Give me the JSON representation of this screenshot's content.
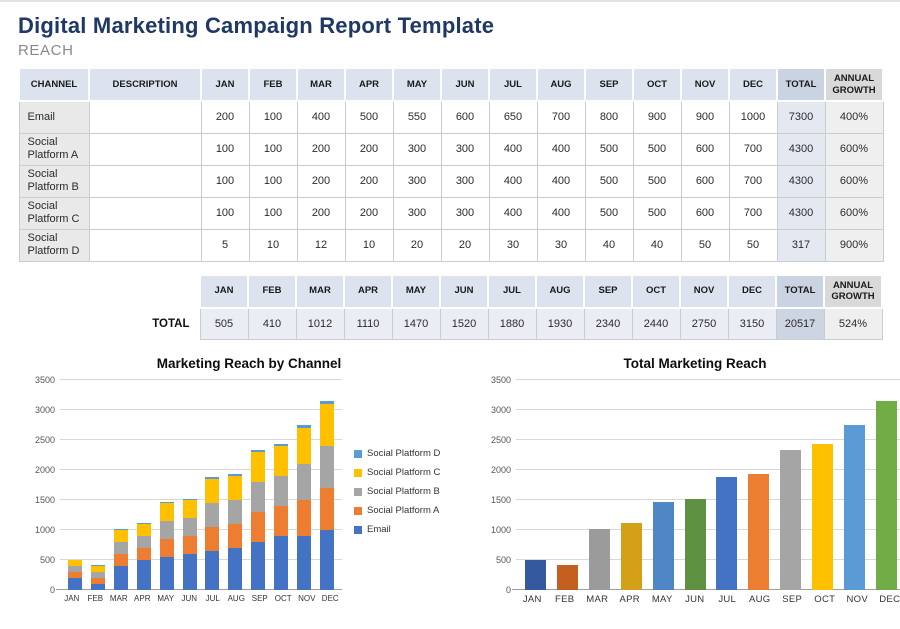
{
  "page": {
    "title": "Digital Marketing Campaign Report Template",
    "section": "REACH"
  },
  "colors": {
    "titleNavy": "#1F3864",
    "sectionGray": "#8A8A8A",
    "headerBlue": "#DCE3EE",
    "headerTotal": "#C9D3E1",
    "headerGrowth": "#D9D9D9",
    "cellChannel": "#E9E9E9",
    "cellTotal": "#E3E8F1",
    "cellGrowth": "#EFEFEF",
    "cellBottomData": "#EAEDF3",
    "cellBottomTotal": "#CDD5E3",
    "borderGray": "#C9CCD1"
  },
  "reach_table": {
    "headers": [
      "CHANNEL",
      "DESCRIPTION",
      "JAN",
      "FEB",
      "MAR",
      "APR",
      "MAY",
      "JUN",
      "JUL",
      "AUG",
      "SEP",
      "OCT",
      "NOV",
      "DEC",
      "TOTAL",
      "ANNUAL GROWTH"
    ],
    "rows": [
      {
        "channel": "Email",
        "description": "",
        "values": [
          200,
          100,
          400,
          500,
          550,
          600,
          650,
          700,
          800,
          900,
          900,
          1000
        ],
        "total": 7300,
        "growth": "400%"
      },
      {
        "channel": "Social Platform A",
        "description": "",
        "values": [
          100,
          100,
          200,
          200,
          300,
          300,
          400,
          400,
          500,
          500,
          600,
          700
        ],
        "total": 4300,
        "growth": "600%"
      },
      {
        "channel": "Social Platform B",
        "description": "",
        "values": [
          100,
          100,
          200,
          200,
          300,
          300,
          400,
          400,
          500,
          500,
          600,
          700
        ],
        "total": 4300,
        "growth": "600%"
      },
      {
        "channel": "Social Platform C",
        "description": "",
        "values": [
          100,
          100,
          200,
          200,
          300,
          300,
          400,
          400,
          500,
          500,
          600,
          700
        ],
        "total": 4300,
        "growth": "600%"
      },
      {
        "channel": "Social Platform D",
        "description": "",
        "values": [
          5,
          10,
          12,
          10,
          20,
          20,
          30,
          30,
          40,
          40,
          50,
          50
        ],
        "total": 317,
        "growth": "900%"
      }
    ]
  },
  "total_table": {
    "label": "TOTAL",
    "headers": [
      "JAN",
      "FEB",
      "MAR",
      "APR",
      "MAY",
      "JUN",
      "JUL",
      "AUG",
      "SEP",
      "OCT",
      "NOV",
      "DEC",
      "TOTAL",
      "ANNUAL GROWTH"
    ],
    "values": [
      505,
      410,
      1012,
      1110,
      1470,
      1520,
      1880,
      1930,
      2340,
      2440,
      2750,
      3150
    ],
    "total": 20517,
    "growth": "524%"
  },
  "chart_data": [
    {
      "type": "bar",
      "stacked": true,
      "title": "Marketing Reach by Channel",
      "categories": [
        "JAN",
        "FEB",
        "MAR",
        "APR",
        "MAY",
        "JUN",
        "JUL",
        "AUG",
        "SEP",
        "OCT",
        "NOV",
        "DEC"
      ],
      "series": [
        {
          "name": "Email",
          "color": "#4472C4",
          "values": [
            200,
            100,
            400,
            500,
            550,
            600,
            650,
            700,
            800,
            900,
            900,
            1000
          ]
        },
        {
          "name": "Social Platform A",
          "color": "#ED7D31",
          "values": [
            100,
            100,
            200,
            200,
            300,
            300,
            400,
            400,
            500,
            500,
            600,
            700
          ]
        },
        {
          "name": "Social Platform B",
          "color": "#A5A5A5",
          "values": [
            100,
            100,
            200,
            200,
            300,
            300,
            400,
            400,
            500,
            500,
            600,
            700
          ]
        },
        {
          "name": "Social Platform C",
          "color": "#FFC000",
          "values": [
            100,
            100,
            200,
            200,
            300,
            300,
            400,
            400,
            500,
            500,
            600,
            700
          ]
        },
        {
          "name": "Social Platform D",
          "color": "#5B9BD5",
          "values": [
            5,
            10,
            12,
            10,
            20,
            20,
            30,
            30,
            40,
            40,
            50,
            50
          ]
        }
      ],
      "legend": [
        {
          "label": "Social Platform D",
          "color": "#5B9BD5"
        },
        {
          "label": "Social Platform C",
          "color": "#FFC000"
        },
        {
          "label": "Social Platform B",
          "color": "#A5A5A5"
        },
        {
          "label": "Social Platform A",
          "color": "#ED7D31"
        },
        {
          "label": "Email",
          "color": "#4472C4"
        }
      ],
      "legend_position": "right",
      "ylim": [
        0,
        3500
      ],
      "ytick": 500,
      "grid": true
    },
    {
      "type": "bar",
      "stacked": false,
      "title": "Total Marketing Reach",
      "categories": [
        "JAN",
        "FEB",
        "MAR",
        "APR",
        "MAY",
        "JUN",
        "JUL",
        "AUG",
        "SEP",
        "OCT",
        "NOV",
        "DEC"
      ],
      "values": [
        505,
        410,
        1012,
        1110,
        1470,
        1520,
        1880,
        1930,
        2340,
        2440,
        2750,
        3150
      ],
      "bar_colors": [
        "#35599F",
        "#C55F1F",
        "#9B9B9B",
        "#D4A017",
        "#4E86C6",
        "#5E9142",
        "#4472C4",
        "#ED7D31",
        "#A5A5A5",
        "#FFC000",
        "#5B9BD5",
        "#70AD47"
      ],
      "ylim": [
        0,
        3500
      ],
      "ytick": 500,
      "grid": true
    }
  ]
}
